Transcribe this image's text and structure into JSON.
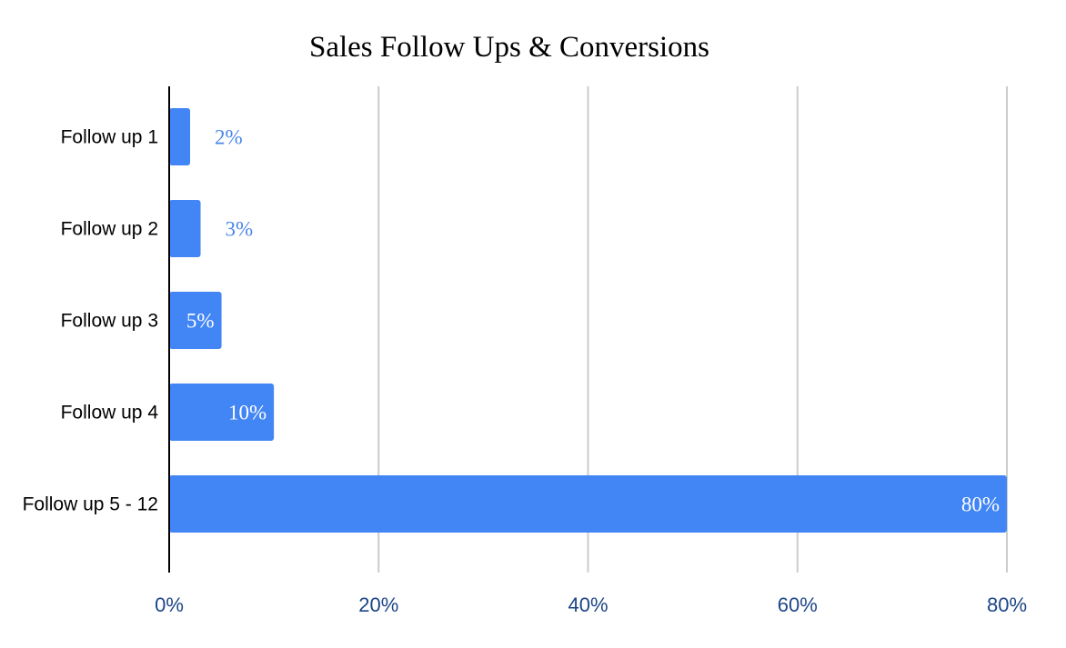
{
  "chart_data": {
    "type": "bar",
    "orientation": "horizontal",
    "title": "Sales Follow Ups & Conversions",
    "categories": [
      "Follow up 1",
      "Follow up 2",
      "Follow up 3",
      "Follow up 4",
      "Follow up 5 - 12"
    ],
    "values": [
      2,
      3,
      5,
      10,
      80
    ],
    "value_labels": [
      "2%",
      "3%",
      "5%",
      "10%",
      "80%"
    ],
    "xlabel": "",
    "ylabel": "",
    "xlim": [
      0,
      80
    ],
    "x_ticks": [
      0,
      20,
      40,
      60,
      80
    ],
    "x_tick_labels": [
      "0%",
      "20%",
      "40%",
      "60%",
      "80%"
    ],
    "grid": "vertical",
    "legend": "none"
  },
  "colors": {
    "bar": "#4285f4",
    "label_outside": "#4a86e8",
    "label_inside": "#ffffff",
    "tick_label": "#1c4587",
    "grid": "#cccccc",
    "axis": "#000000"
  }
}
